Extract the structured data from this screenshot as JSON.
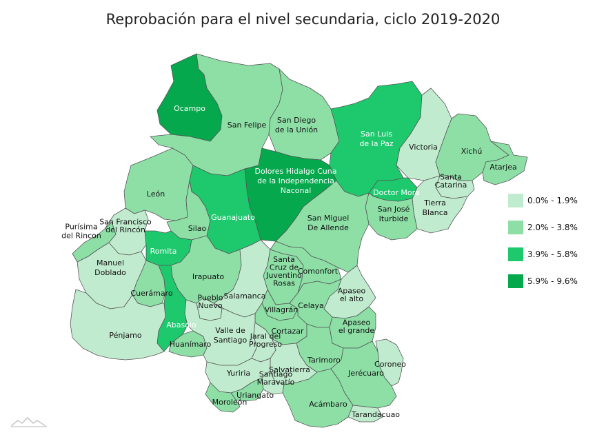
{
  "title": "Reprobación para el nivel secundaria, ciclo 2019-2020",
  "legend": [
    {
      "label": "0.0% - 1.9%",
      "color": "#c1ebcf"
    },
    {
      "label": "2.0% - 3.8%",
      "color": "#8ddfa6"
    },
    {
      "label": "3.9% - 5.8%",
      "color": "#1ec96e"
    },
    {
      "label": "5.9% - 9.6%",
      "color": "#05a84c"
    }
  ],
  "municipios": {
    "ocampo": {
      "name": [
        "Ocampo"
      ],
      "class": 4
    },
    "san_felipe": {
      "name": [
        "San Felipe"
      ],
      "class": 2
    },
    "san_diego": {
      "name": [
        "San Diego",
        "de la Unión"
      ],
      "class": 2
    },
    "san_luis": {
      "name": [
        "San Luis",
        "de la Paz"
      ],
      "class": 3
    },
    "victoria": {
      "name": [
        "Victoria"
      ],
      "class": 1
    },
    "xichu": {
      "name": [
        "Xichú"
      ],
      "class": 2
    },
    "atarjea": {
      "name": [
        "Atarjea"
      ],
      "class": 2
    },
    "santa_catarina": {
      "name": [
        "Santa",
        "Catarina"
      ],
      "class": 1
    },
    "tierra_blanca": {
      "name": [
        "Tierra",
        "Blanca"
      ],
      "class": 1
    },
    "doctor_mora": {
      "name": [
        "Doctor Mora"
      ],
      "class": 3
    },
    "san_jose": {
      "name": [
        "San José",
        "Iturbide"
      ],
      "class": 2
    },
    "dolores": {
      "name": [
        "Dolores Hidalgo Cuna",
        "de la Independencia",
        "Naconal"
      ],
      "class": 4
    },
    "leon": {
      "name": [
        "León"
      ],
      "class": 2
    },
    "guanajuato": {
      "name": [
        "Guanajuato"
      ],
      "class": 3
    },
    "silao": {
      "name": [
        "Silao"
      ],
      "class": 2
    },
    "san_miguel": {
      "name": [
        "San Miguel",
        "De Allende"
      ],
      "class": 2
    },
    "purisima": {
      "name": [
        "Purísima",
        "del Rincon"
      ],
      "class": 2
    },
    "san_francisco": {
      "name": [
        "San Francisco",
        "del Rincón"
      ],
      "class": 1
    },
    "romita": {
      "name": [
        "Romita"
      ],
      "class": 3
    },
    "manuel_doblado": {
      "name": [
        "Manuel",
        "Doblado"
      ],
      "class": 1
    },
    "irapuato": {
      "name": [
        "Irapuato"
      ],
      "class": 2
    },
    "cueramaro": {
      "name": [
        "Cuerámaro"
      ],
      "class": 2
    },
    "abasolo": {
      "name": [
        "Abasolo"
      ],
      "class": 3
    },
    "penjamo": {
      "name": [
        "Pénjamo"
      ],
      "class": 1
    },
    "huanimaro": {
      "name": [
        "Huanímaro"
      ],
      "class": 2
    },
    "pueblo_nuevo": {
      "name": [
        "Pueblo",
        "Nuevo"
      ],
      "class": 1
    },
    "salamanca": {
      "name": [
        "Salamanca"
      ],
      "class": 1
    },
    "santa_cruz": {
      "name": [
        "Santa",
        "Cruz de",
        "Juventino",
        "Rosas"
      ],
      "class": 2
    },
    "comonfort": {
      "name": [
        "Comonfort"
      ],
      "class": 2
    },
    "apaseo_alto": {
      "name": [
        "Apaseo",
        "el alto"
      ],
      "class": 1
    },
    "villagran": {
      "name": [
        "Villagrán"
      ],
      "class": 2
    },
    "celaya": {
      "name": [
        "Celaya"
      ],
      "class": 2
    },
    "cortazar": {
      "name": [
        "Cortazar"
      ],
      "class": 2
    },
    "apaseo_grande": {
      "name": [
        "Apaseo",
        "el grande"
      ],
      "class": 2
    },
    "valle_santiago": {
      "name": [
        "Valle de",
        "Santiago"
      ],
      "class": 1
    },
    "jaral": {
      "name": [
        "Jaral del",
        "Progreso"
      ],
      "class": 1
    },
    "tarimoro": {
      "name": [
        "Tarimoro"
      ],
      "class": 2
    },
    "coroneo": {
      "name": [
        "Coroneo"
      ],
      "class": 1
    },
    "jerecuaro": {
      "name": [
        "Jerécuaro"
      ],
      "class": 2
    },
    "salvatierra": {
      "name": [
        "Salvatierra"
      ],
      "class": 1
    },
    "yuriria": {
      "name": [
        "Yuriria"
      ],
      "class": 1
    },
    "santiago_maravatio": {
      "name": [
        "Santiago",
        "Maravatío"
      ],
      "class": 1
    },
    "uriangato": {
      "name": [
        "Uriangato"
      ],
      "class": 2
    },
    "moroleon": {
      "name": [
        "Moroleón"
      ],
      "class": 2
    },
    "acambaro": {
      "name": [
        "Acámbaro"
      ],
      "class": 2
    },
    "tarandacuao": {
      "name": [
        "Tarandacuao"
      ],
      "class": 1
    }
  }
}
